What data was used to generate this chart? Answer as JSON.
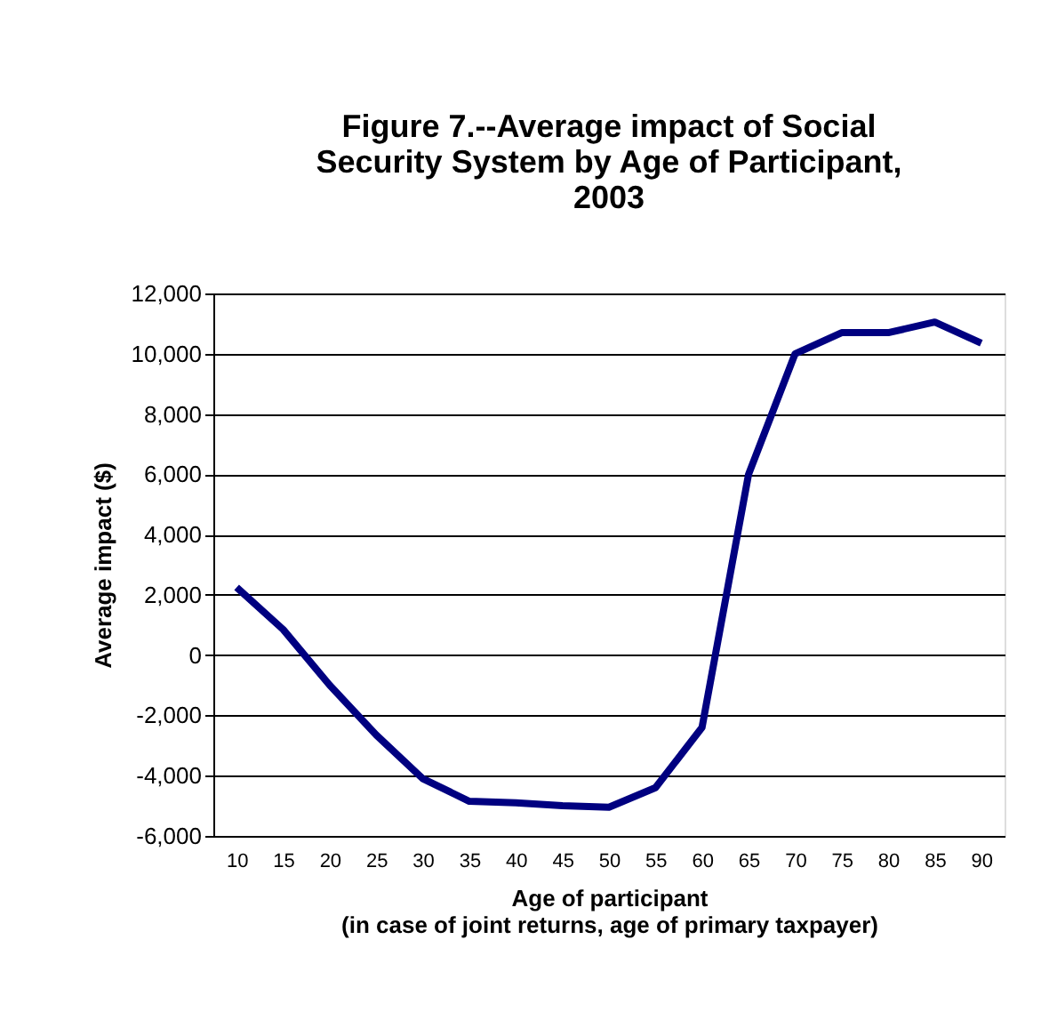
{
  "chart_data": {
    "type": "line",
    "title": "Figure 7.--Average impact of Social Security System by Age of Participant, 2003",
    "xlabel": "Age of participant\n(in case of joint returns, age of primary taxpayer)",
    "ylabel": "Average impact ($)",
    "categories": [
      "10",
      "15",
      "20",
      "25",
      "30",
      "35",
      "40",
      "45",
      "50",
      "55",
      "60",
      "65",
      "70",
      "75",
      "80",
      "85",
      "90"
    ],
    "series": [
      {
        "color": "#000080",
        "values": [
          2250,
          850,
          -1000,
          -2650,
          -4100,
          -4850,
          -4900,
          -5000,
          -5050,
          -4400,
          -2400,
          6000,
          10000,
          10700,
          10700,
          11050,
          10350
        ]
      }
    ],
    "ylim": [
      -6000,
      12000
    ],
    "yticks": [
      {
        "value": -6000,
        "label": "-6,000"
      },
      {
        "value": -4000,
        "label": "-4,000"
      },
      {
        "value": -2000,
        "label": "-2,000"
      },
      0,
      {
        "value": 2000,
        "label": "2,000"
      },
      {
        "value": 4000,
        "label": "4,000"
      },
      {
        "value": 6000,
        "label": "6,000"
      },
      {
        "value": 8000,
        "label": "8,000"
      },
      {
        "value": 10000,
        "label": "10,000"
      },
      {
        "value": 12000,
        "label": "12,000"
      }
    ],
    "grid": "y",
    "marker": "none",
    "line_style": "solid"
  }
}
